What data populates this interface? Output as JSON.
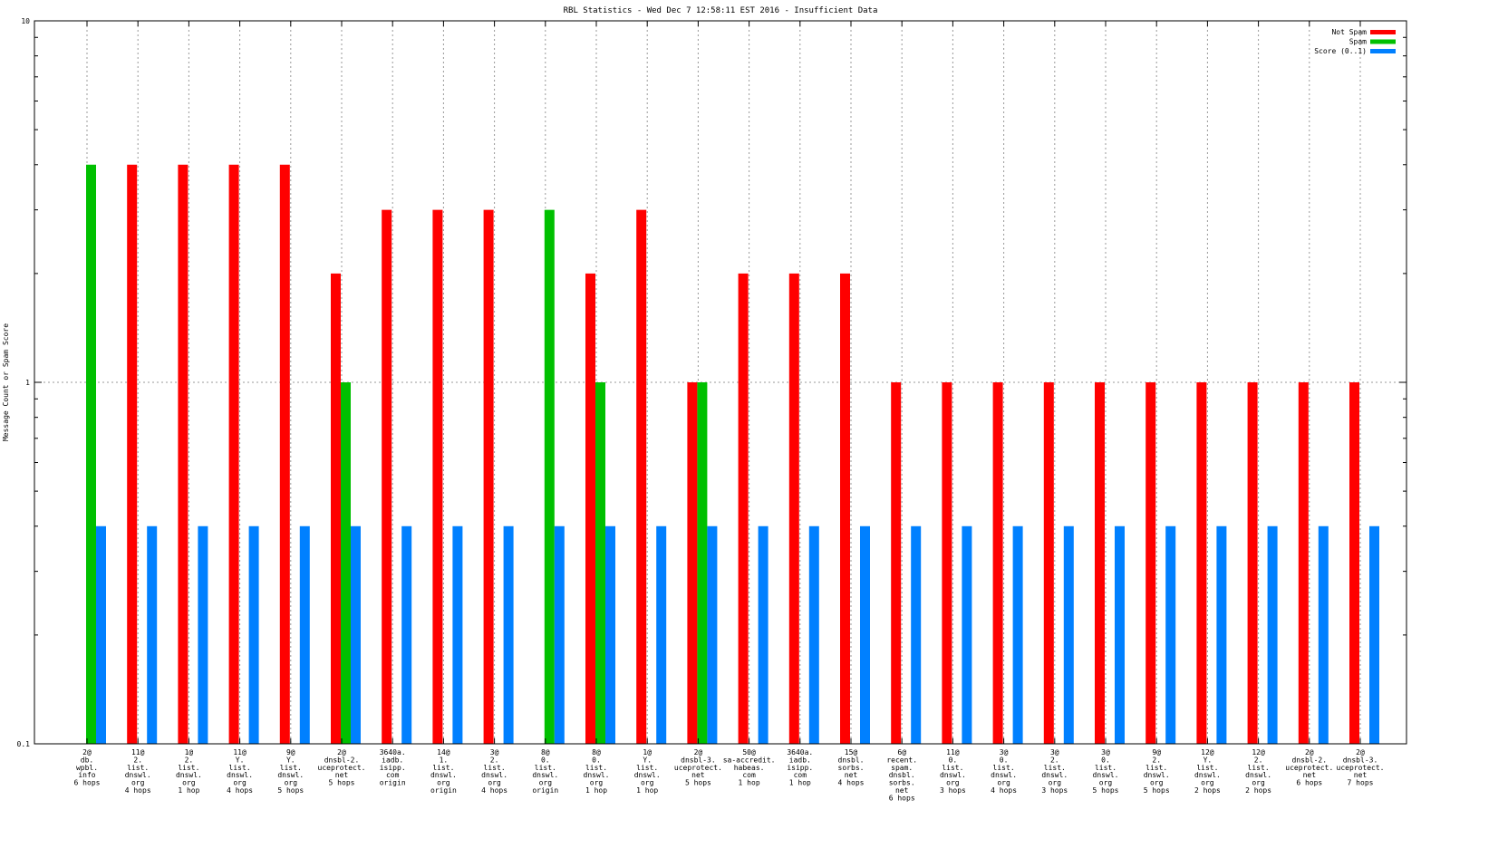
{
  "chart_data": {
    "type": "bar",
    "title": "RBL Statistics - Wed Dec  7 12:58:11 EST 2016 - Insufficient Data",
    "ylabel": "Message Count or Spam Score",
    "xlabel": "",
    "yscale": "log",
    "ylim": [
      0.1,
      10
    ],
    "yticks": [
      {
        "value": 0.1,
        "label": "0.1"
      },
      {
        "value": 1,
        "label": "1"
      },
      {
        "value": 10,
        "label": "10"
      }
    ],
    "grid": true,
    "legend_position": "top-right",
    "categories": [
      [
        "2@",
        "db.",
        "wpbl.",
        "info",
        "6 hops"
      ],
      [
        "11@",
        "2.",
        "list.",
        "dnswl.",
        "org",
        "4 hops"
      ],
      [
        "1@",
        "2.",
        "list.",
        "dnswl.",
        "org",
        "1 hop"
      ],
      [
        "11@",
        "Y.",
        "list.",
        "dnswl.",
        "org",
        "4 hops"
      ],
      [
        "9@",
        "Y.",
        "list.",
        "dnswl.",
        "org",
        "5 hops"
      ],
      [
        "2@",
        "dnsbl-2.",
        "uceprotect.",
        "net",
        "5 hops"
      ],
      [
        "3640a.",
        "iadb.",
        "isipp.",
        "com",
        "origin"
      ],
      [
        "14@",
        "1.",
        "list.",
        "dnswl.",
        "org",
        "origin"
      ],
      [
        "3@",
        "2.",
        "list.",
        "dnswl.",
        "org",
        "4 hops"
      ],
      [
        "8@",
        "0.",
        "list.",
        "dnswl.",
        "org",
        "origin"
      ],
      [
        "8@",
        "0.",
        "list.",
        "dnswl.",
        "org",
        "1 hop"
      ],
      [
        "1@",
        "Y.",
        "list.",
        "dnswl.",
        "org",
        "1 hop"
      ],
      [
        "2@",
        "dnsbl-3.",
        "uceprotect.",
        "net",
        "5 hops"
      ],
      [
        "50@",
        "sa-accredit.",
        "habeas.",
        "com",
        "1 hop"
      ],
      [
        "3640a.",
        "iadb.",
        "isipp.",
        "com",
        "1 hop"
      ],
      [
        "15@",
        "dnsbl.",
        "sorbs.",
        "net",
        "4 hops"
      ],
      [
        "6@",
        "recent.",
        "spam.",
        "dnsbl.",
        "sorbs.",
        "net",
        "6 hops"
      ],
      [
        "11@",
        "0.",
        "list.",
        "dnswl.",
        "org",
        "3 hops"
      ],
      [
        "3@",
        "0.",
        "list.",
        "dnswl.",
        "org",
        "4 hops"
      ],
      [
        "3@",
        "2.",
        "list.",
        "dnswl.",
        "org",
        "3 hops"
      ],
      [
        "3@",
        "0.",
        "list.",
        "dnswl.",
        "org",
        "5 hops"
      ],
      [
        "9@",
        "2.",
        "list.",
        "dnswl.",
        "org",
        "5 hops"
      ],
      [
        "12@",
        "Y.",
        "list.",
        "dnswl.",
        "org",
        "2 hops"
      ],
      [
        "12@",
        "2.",
        "list.",
        "dnswl.",
        "org",
        "2 hops"
      ],
      [
        "2@",
        "dnsbl-2.",
        "uceprotect.",
        "net",
        "6 hops"
      ],
      [
        "2@",
        "dnsbl-3.",
        "uceprotect.",
        "net",
        "7 hops"
      ]
    ],
    "series": [
      {
        "name": "Not Spam",
        "color": "#ff0000",
        "values": [
          0,
          4,
          4,
          4,
          4,
          2,
          3,
          3,
          3,
          0,
          2,
          3,
          1,
          2,
          2,
          2,
          1,
          1,
          1,
          1,
          1,
          1,
          1,
          1,
          1,
          1
        ]
      },
      {
        "name": "Spam",
        "color": "#00c000",
        "values": [
          4,
          0,
          0,
          0,
          0,
          1,
          0,
          0,
          0,
          3,
          1,
          0,
          1,
          0,
          0,
          0,
          0,
          0,
          0,
          0,
          0,
          0,
          0,
          0,
          0,
          0
        ]
      },
      {
        "name": "Score (0..1)",
        "color": "#0080ff",
        "values": [
          0.4,
          0.4,
          0.4,
          0.4,
          0.4,
          0.4,
          0.4,
          0.4,
          0.4,
          0.4,
          0.4,
          0.4,
          0.4,
          0.4,
          0.4,
          0.4,
          0.4,
          0.4,
          0.4,
          0.4,
          0.4,
          0.4,
          0.4,
          0.4,
          0.4,
          0.4
        ]
      }
    ]
  }
}
